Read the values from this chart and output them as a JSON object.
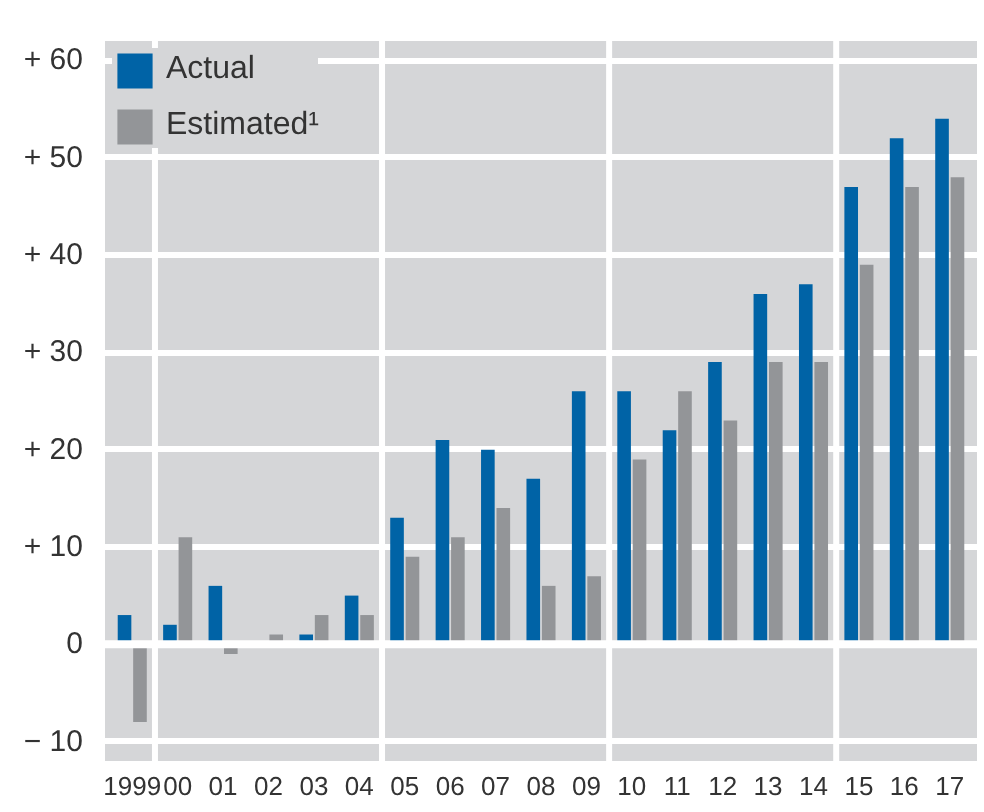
{
  "chart_data": {
    "type": "bar",
    "categories": [
      "1999",
      "00",
      "01",
      "02",
      "03",
      "04",
      "05",
      "06",
      "07",
      "08",
      "09",
      "10",
      "11",
      "12",
      "13",
      "14",
      "15",
      "16",
      "17"
    ],
    "series": [
      {
        "name": "Actual",
        "color": "#0063a6",
        "values": [
          3,
          2,
          6,
          0,
          1,
          5,
          13,
          21,
          20,
          17,
          26,
          26,
          22,
          29,
          36,
          37,
          47,
          52,
          54
        ]
      },
      {
        "name": "Estimated¹",
        "color": "#939598",
        "values": [
          -8,
          11,
          -1,
          1,
          3,
          3,
          9,
          11,
          14,
          6,
          7,
          19,
          26,
          23,
          29,
          29,
          39,
          47,
          48
        ]
      }
    ],
    "ylim": [
      -12,
      62
    ],
    "yticks": [
      {
        "value": -10,
        "label": "− 10"
      },
      0,
      {
        "value": 10,
        "label": "+ 10"
      },
      {
        "value": 20,
        "label": "+ 20"
      },
      {
        "value": 30,
        "label": "+ 30"
      },
      {
        "value": 40,
        "label": "+ 40"
      },
      {
        "value": 50,
        "label": "+ 50"
      },
      {
        "value": 60,
        "label": "+ 60"
      }
    ],
    "grid": true,
    "legend": "top left"
  }
}
